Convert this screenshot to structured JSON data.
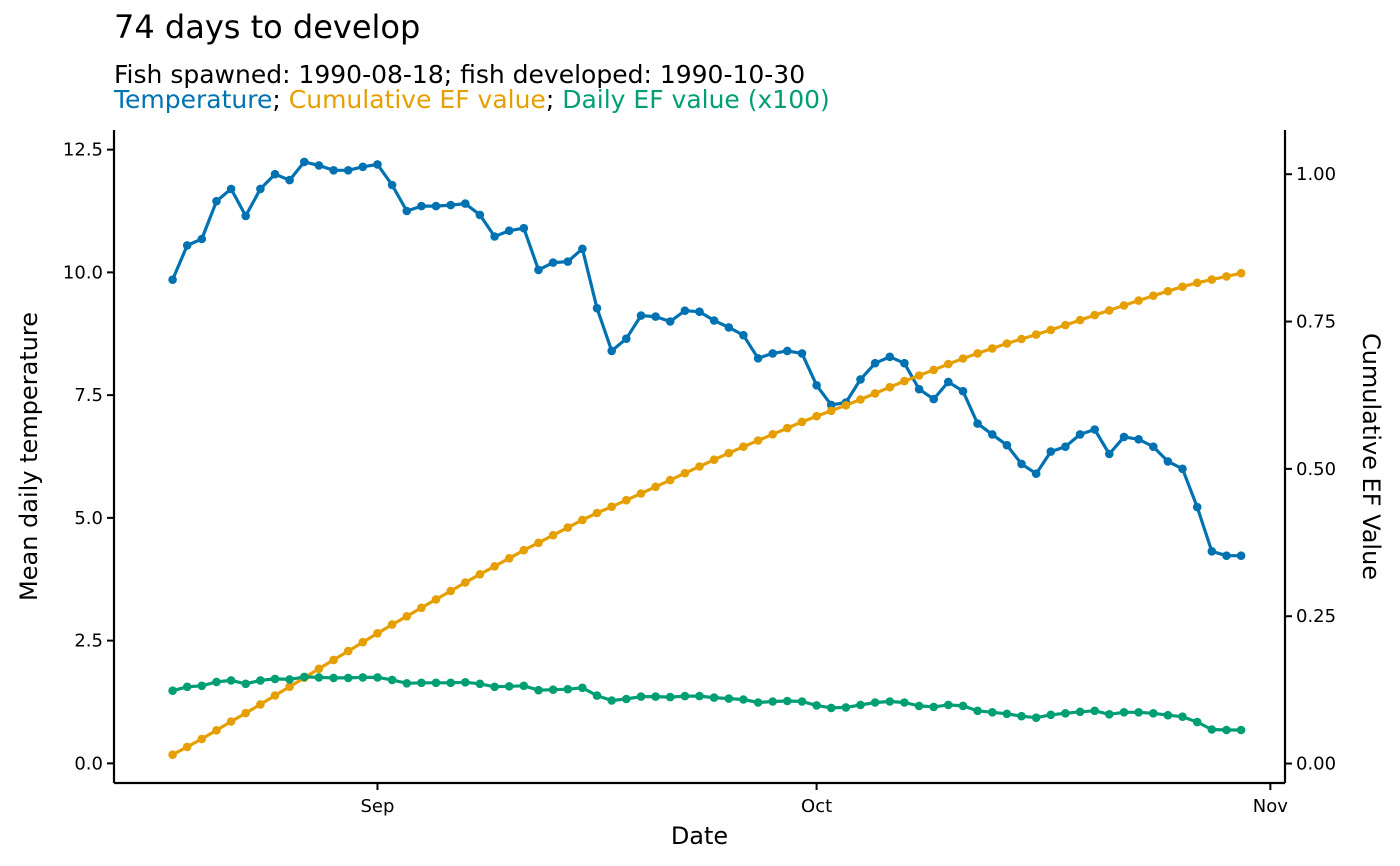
{
  "title": "74 days to develop",
  "subtitle": "Fish spawned: 1990-08-18; fish developed: 1990-10-30",
  "legend": {
    "temperature_label": "Temperature",
    "cumulative_label": "Cumulative EF value",
    "daily_label": "Daily EF value (x100)",
    "separator": ";"
  },
  "colors": {
    "temperature": "#0072B2",
    "cumulative": "#E69F00",
    "daily": "#009E73"
  },
  "chart_data": {
    "type": "line",
    "title": "74 days to develop",
    "subtitle": "Fish spawned: 1990-08-18; fish developed: 1990-10-30",
    "xlabel": "Date",
    "ylabel": "Mean daily temperature",
    "ylabel_right": "Cumulative EF Value",
    "x_start": "1990-08-18",
    "x_end": "1990-10-30",
    "xlim": [
      "1990-08-14",
      "1990-11-02"
    ],
    "ylim": [
      -0.4,
      12.9
    ],
    "ylim_right": [
      -0.033,
      1.075
    ],
    "x_ticks": [
      {
        "date": "1990-09-01",
        "label": "Sep"
      },
      {
        "date": "1990-10-01",
        "label": "Oct"
      },
      {
        "date": "1990-11-01",
        "label": "Nov"
      }
    ],
    "y_ticks": [
      "0.0",
      "2.5",
      "5.0",
      "7.5",
      "10.0",
      "12.5"
    ],
    "y_ticks_right": [
      "0.00",
      "0.25",
      "0.50",
      "0.75",
      "1.00"
    ],
    "grid": false,
    "series": [
      {
        "name": "Temperature",
        "axis": "left",
        "values": [
          9.85,
          10.55,
          10.68,
          11.45,
          11.7,
          11.15,
          11.7,
          12.0,
          11.88,
          12.25,
          12.18,
          12.08,
          12.08,
          12.15,
          12.2,
          11.78,
          11.25,
          11.35,
          11.35,
          11.37,
          11.4,
          11.17,
          10.73,
          10.85,
          10.9,
          10.05,
          10.2,
          10.22,
          10.48,
          9.27,
          8.4,
          8.65,
          9.12,
          9.1,
          9.0,
          9.22,
          9.2,
          9.02,
          8.88,
          8.72,
          8.25,
          8.35,
          8.4,
          8.35,
          7.7,
          7.3,
          7.35,
          7.82,
          8.15,
          8.28,
          8.15,
          7.62,
          7.42,
          7.77,
          7.58,
          6.92,
          6.7,
          6.48,
          6.1,
          5.9,
          6.35,
          6.45,
          6.7,
          6.8,
          6.3,
          6.65,
          6.6,
          6.45,
          6.15,
          6.0,
          5.22,
          4.32,
          4.23,
          4.23
        ]
      },
      {
        "name": "Cumulative EF value",
        "axis": "right",
        "values": [
          0.015,
          0.0282,
          0.0418,
          0.0564,
          0.0713,
          0.0856,
          0.1004,
          0.1155,
          0.1304,
          0.1456,
          0.1608,
          0.1758,
          0.1908,
          0.2059,
          0.221,
          0.2357,
          0.2499,
          0.2642,
          0.2785,
          0.2928,
          0.3072,
          0.3212,
          0.3347,
          0.3483,
          0.362,
          0.3746,
          0.3874,
          0.4003,
          0.4135,
          0.4252,
          0.4358,
          0.4468,
          0.4582,
          0.4696,
          0.481,
          0.4926,
          0.5041,
          0.5155,
          0.5267,
          0.5377,
          0.5481,
          0.5586,
          0.5692,
          0.5797,
          0.5894,
          0.5986,
          0.6079,
          0.6178,
          0.6281,
          0.6386,
          0.6489,
          0.6585,
          0.6679,
          0.6777,
          0.6873,
          0.696,
          0.7045,
          0.7127,
          0.7204,
          0.7278,
          0.7358,
          0.744,
          0.7524,
          0.761,
          0.7689,
          0.7773,
          0.7856,
          0.7938,
          0.8015,
          0.8091,
          0.8157,
          0.8212,
          0.8266,
          0.832
        ]
      },
      {
        "name": "Daily EF value (x100)",
        "axis": "left",
        "values": [
          1.48,
          1.56,
          1.58,
          1.66,
          1.69,
          1.62,
          1.69,
          1.72,
          1.71,
          1.76,
          1.75,
          1.74,
          1.74,
          1.75,
          1.75,
          1.7,
          1.63,
          1.64,
          1.64,
          1.64,
          1.65,
          1.62,
          1.56,
          1.57,
          1.58,
          1.49,
          1.5,
          1.51,
          1.54,
          1.38,
          1.28,
          1.31,
          1.36,
          1.36,
          1.35,
          1.37,
          1.37,
          1.34,
          1.32,
          1.3,
          1.24,
          1.26,
          1.27,
          1.26,
          1.18,
          1.13,
          1.14,
          1.19,
          1.24,
          1.26,
          1.24,
          1.17,
          1.15,
          1.19,
          1.17,
          1.07,
          1.04,
          1.01,
          0.96,
          0.93,
          0.99,
          1.02,
          1.05,
          1.07,
          1.0,
          1.04,
          1.04,
          1.02,
          0.98,
          0.95,
          0.84,
          0.69,
          0.68,
          0.68
        ]
      }
    ]
  }
}
